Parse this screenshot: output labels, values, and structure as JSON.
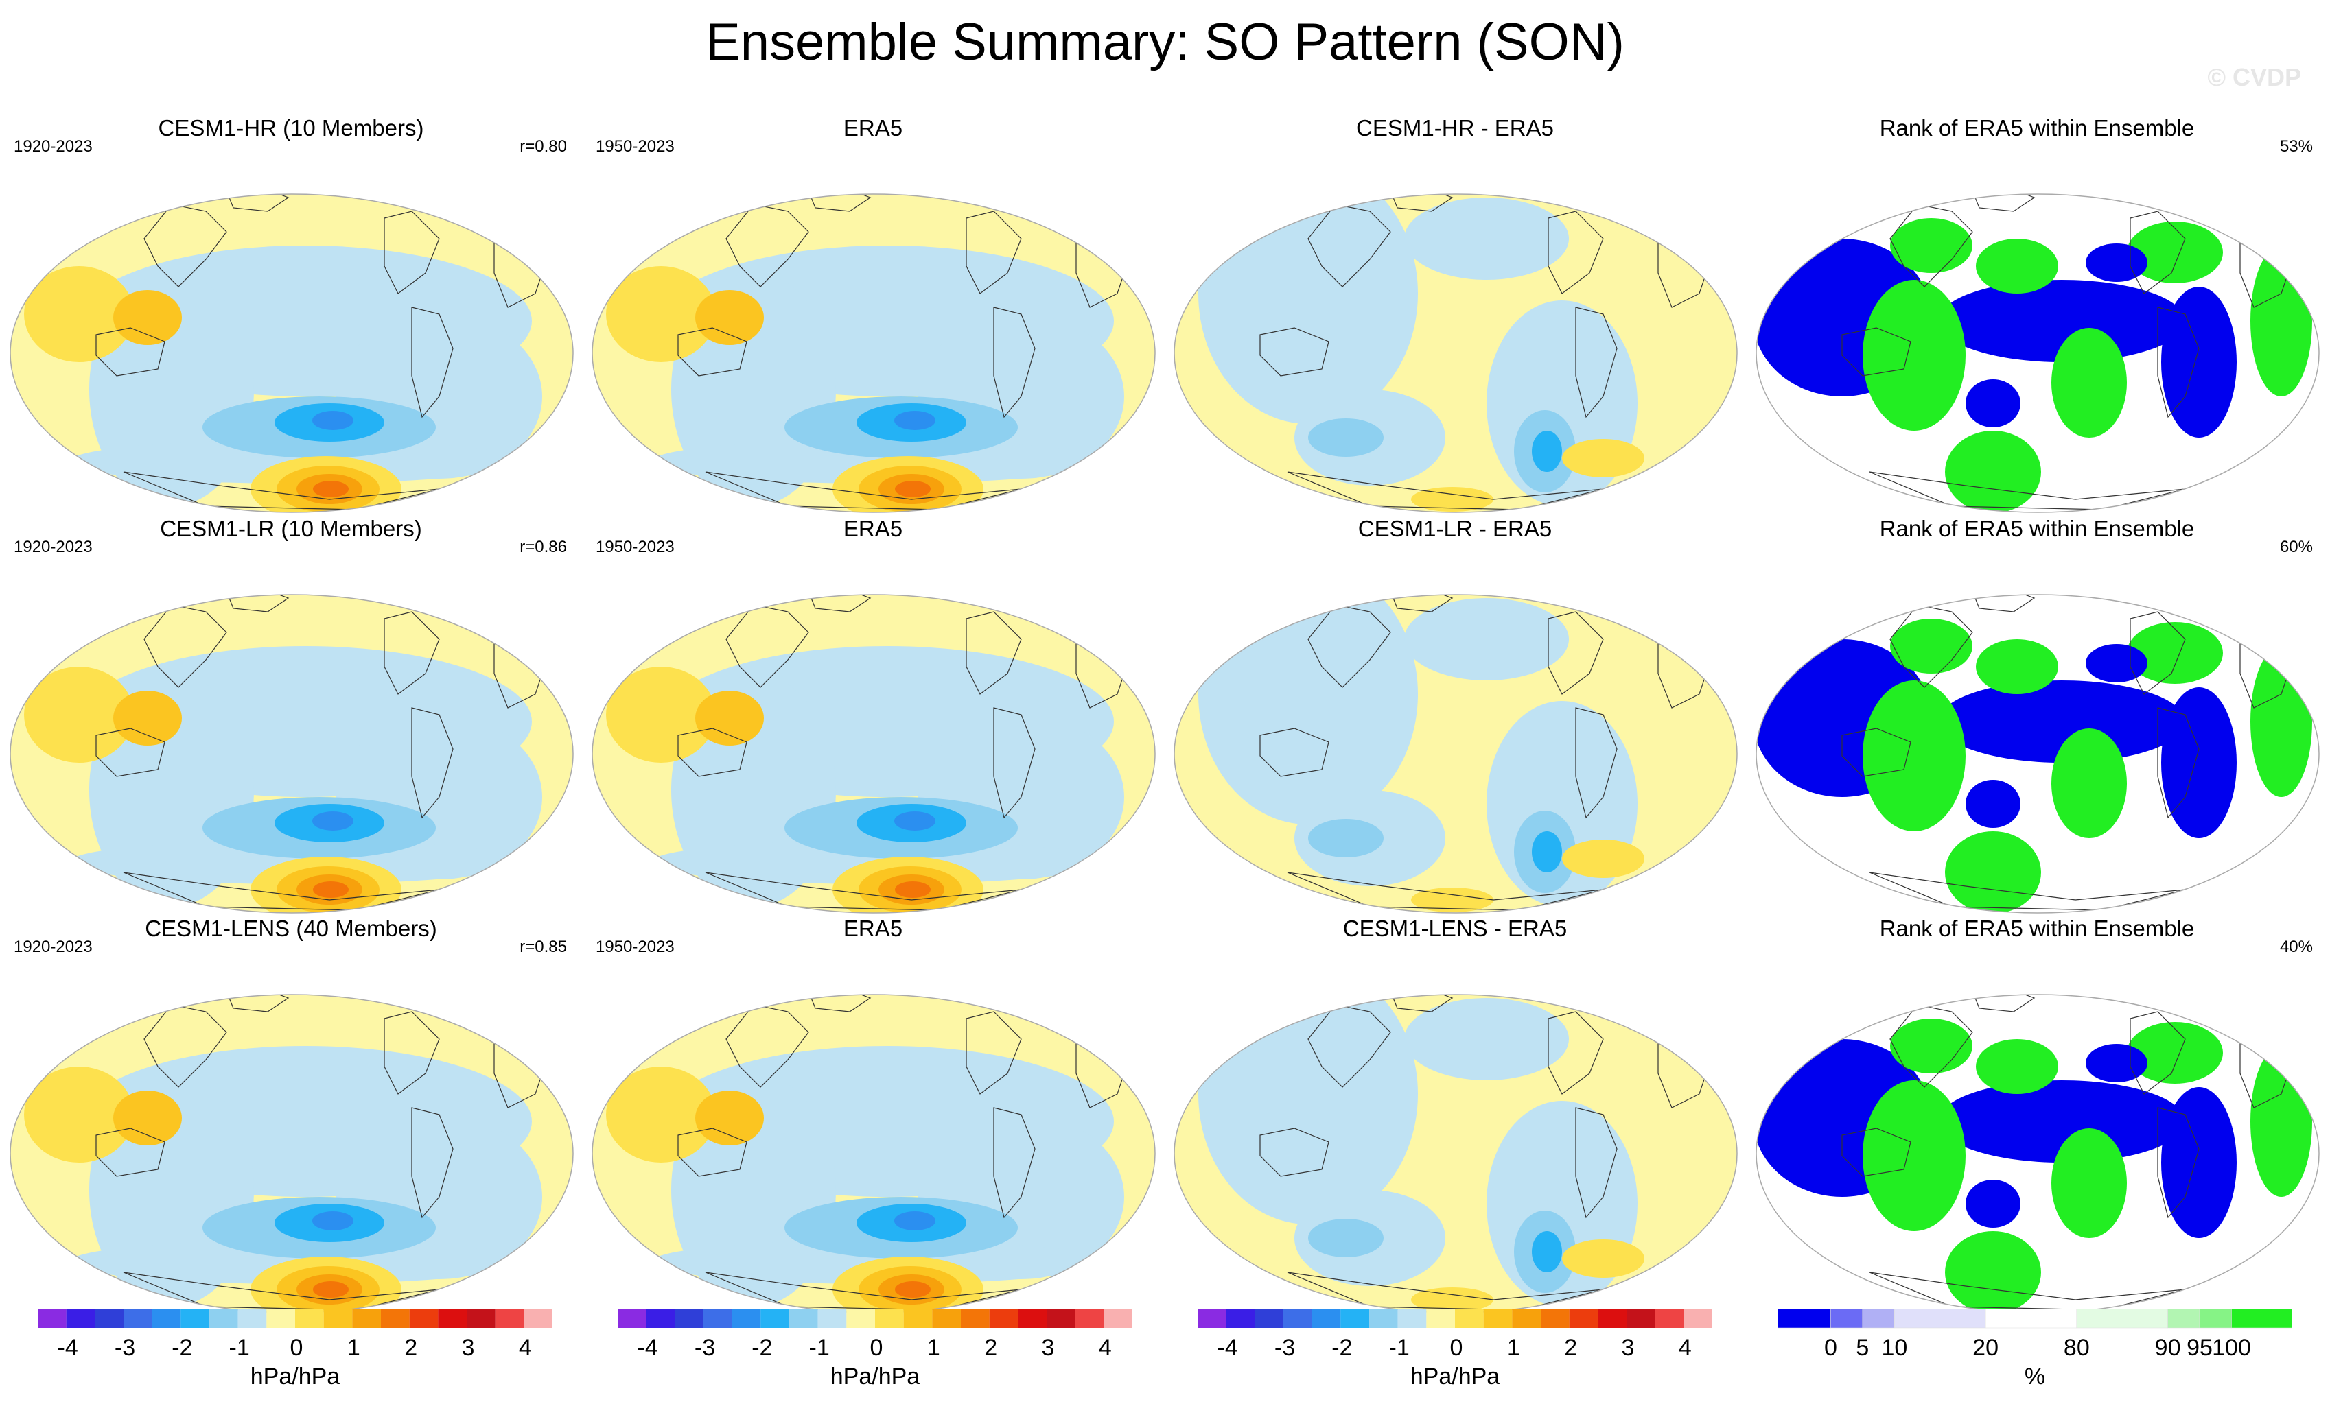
{
  "title": "Ensemble Summary: SO Pattern (SON)",
  "watermark": "© CVDP",
  "colors": {
    "land_outline": "#333333",
    "anom_scale": [
      "#8a2be2",
      "#3a1ee6",
      "#2f3fd8",
      "#3d6ee8",
      "#2b8ff0",
      "#24b2f5",
      "#8ed0f0",
      "#bfe2f3",
      "#fdf7a6",
      "#fde14e",
      "#fbc521",
      "#f7a10c",
      "#f37508",
      "#ec3d0d",
      "#dc0f0f",
      "#c4121a",
      "#ee4444",
      "#f9b0b0"
    ],
    "rank_scale": [
      "#0000ee",
      "#6b6bf5",
      "#b0b0f5",
      "#e0e0fa",
      "#ffffff",
      "#e3fbe3",
      "#b2f5b2",
      "#86f386",
      "#22ee22"
    ]
  },
  "rows": [
    {
      "panels": [
        {
          "title": "CESM1-HR (10 Members)",
          "left": "1920-2023",
          "right": "r=0.80",
          "kind": "anom"
        },
        {
          "title": "ERA5",
          "left": "1950-2023",
          "right": "",
          "kind": "anom"
        },
        {
          "title": "CESM1-HR - ERA5",
          "left": "",
          "right": "",
          "kind": "diff"
        },
        {
          "title": "Rank of ERA5 within Ensemble",
          "left": "",
          "right": "53%",
          "kind": "rank"
        }
      ]
    },
    {
      "panels": [
        {
          "title": "CESM1-LR (10 Members)",
          "left": "1920-2023",
          "right": "r=0.86",
          "kind": "anom"
        },
        {
          "title": "ERA5",
          "left": "1950-2023",
          "right": "",
          "kind": "anom"
        },
        {
          "title": "CESM1-LR - ERA5",
          "left": "",
          "right": "",
          "kind": "diff"
        },
        {
          "title": "Rank of ERA5 within Ensemble",
          "left": "",
          "right": "60%",
          "kind": "rank"
        }
      ]
    },
    {
      "panels": [
        {
          "title": "CESM1-LENS (40 Members)",
          "left": "1920-2023",
          "right": "r=0.85",
          "kind": "anom"
        },
        {
          "title": "ERA5",
          "left": "1950-2023",
          "right": "",
          "kind": "anom"
        },
        {
          "title": "CESM1-LENS - ERA5",
          "left": "",
          "right": "",
          "kind": "diff"
        },
        {
          "title": "Rank of ERA5 within Ensemble",
          "left": "",
          "right": "40%",
          "kind": "rank"
        }
      ]
    }
  ],
  "colorbars": [
    {
      "unit": "hPa/hPa",
      "ticks": [
        "-4",
        "-3",
        "-2",
        "-1",
        "0",
        "1",
        "2",
        "3",
        "4"
      ],
      "type": "anom"
    },
    {
      "unit": "hPa/hPa",
      "ticks": [
        "-4",
        "-3",
        "-2",
        "-1",
        "0",
        "1",
        "2",
        "3",
        "4"
      ],
      "type": "anom"
    },
    {
      "unit": "hPa/hPa",
      "ticks": [
        "-4",
        "-3",
        "-2",
        "-1",
        "0",
        "1",
        "2",
        "3",
        "4"
      ],
      "type": "anom"
    },
    {
      "unit": "%",
      "ticks": [
        "0",
        "5",
        "10",
        "20",
        "80",
        "90",
        "95",
        "100"
      ],
      "type": "rank"
    }
  ]
}
